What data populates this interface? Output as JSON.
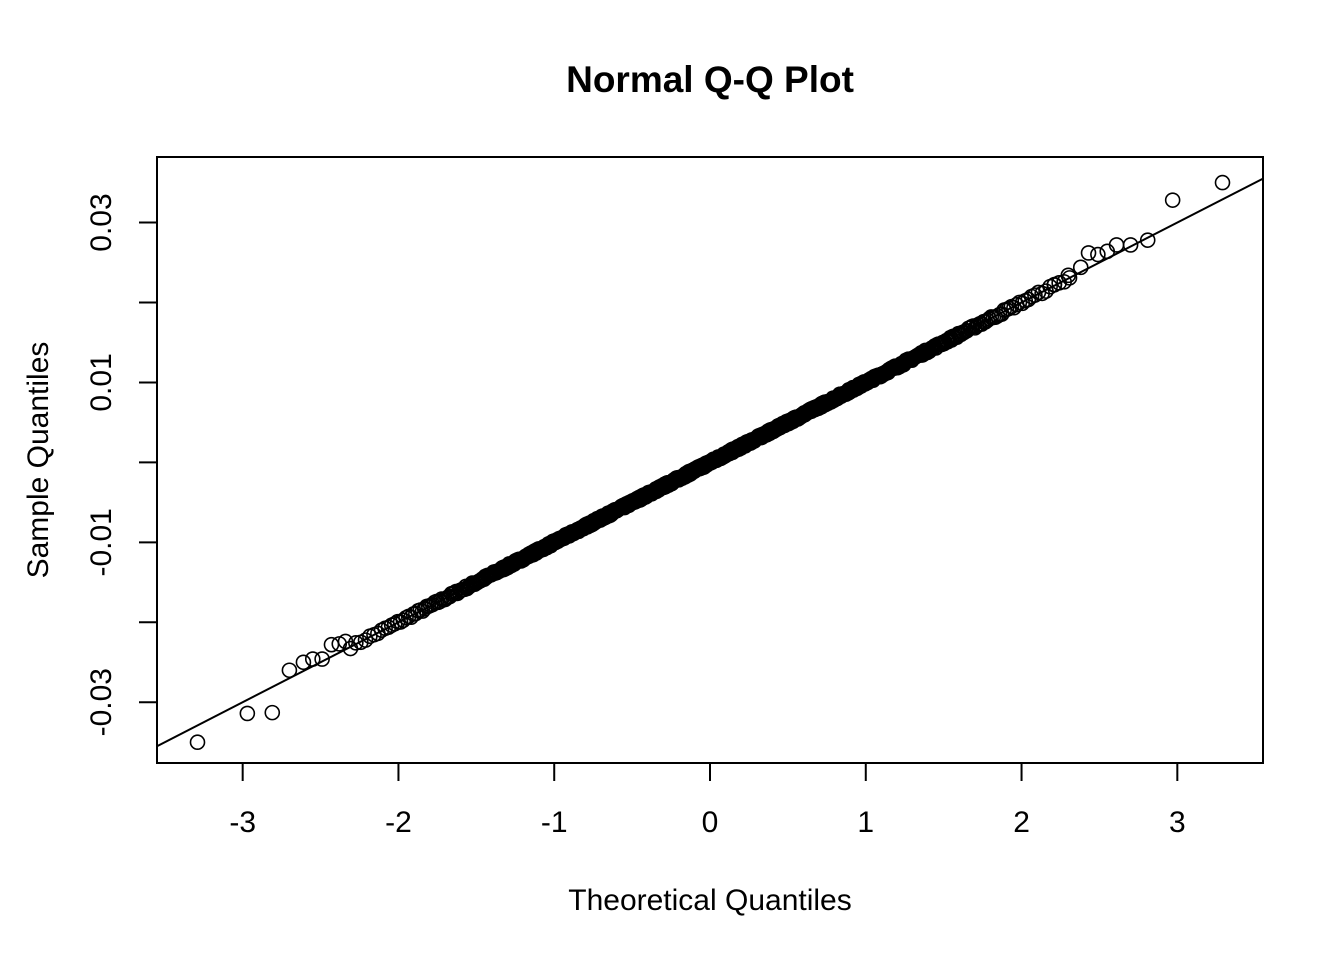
{
  "chart_data": {
    "type": "scatter",
    "title": "Normal Q-Q Plot",
    "xlabel": "Theoretical Quantiles",
    "ylabel": "Sample Quantiles",
    "xlim": [
      -3.55,
      3.55
    ],
    "ylim": [
      -0.0376,
      0.0382
    ],
    "x_ticks": [
      -3,
      -2,
      -1,
      0,
      1,
      2,
      3
    ],
    "x_tick_labels": [
      "-3",
      "-2",
      "-1",
      "0",
      "1",
      "2",
      "3"
    ],
    "y_ticks": [
      -0.03,
      -0.02,
      -0.01,
      0,
      0.01,
      0.02,
      0.03
    ],
    "y_tick_labels": [
      "-0.03",
      "",
      "-0.01",
      "",
      "0.01",
      "",
      "0.03"
    ],
    "grid": false,
    "legend": "none",
    "reference_line": {
      "intercept": 0.0,
      "slope": 0.01
    },
    "sample_size": 1000,
    "outlier_points": [
      {
        "x": -3.29,
        "y": -0.035
      },
      {
        "x": -2.97,
        "y": -0.0314
      },
      {
        "x": -2.81,
        "y": -0.0313
      },
      {
        "x": -2.7,
        "y": -0.026
      },
      {
        "x": -2.61,
        "y": -0.025
      },
      {
        "x": -2.55,
        "y": -0.0246
      },
      {
        "x": -2.49,
        "y": -0.0246
      },
      {
        "x": -2.43,
        "y": -0.0228
      },
      {
        "x": -2.38,
        "y": -0.0227
      },
      {
        "x": -2.34,
        "y": -0.0224
      },
      {
        "x": 2.21,
        "y": 0.0222
      },
      {
        "x": 2.3,
        "y": 0.0234
      },
      {
        "x": 2.38,
        "y": 0.0244
      },
      {
        "x": 2.43,
        "y": 0.0262
      },
      {
        "x": 2.49,
        "y": 0.026
      },
      {
        "x": 2.55,
        "y": 0.0264
      },
      {
        "x": 2.61,
        "y": 0.0272
      },
      {
        "x": 2.7,
        "y": 0.0272
      },
      {
        "x": 2.81,
        "y": 0.0278
      },
      {
        "x": 2.97,
        "y": 0.0328
      },
      {
        "x": 3.29,
        "y": 0.035
      }
    ]
  }
}
